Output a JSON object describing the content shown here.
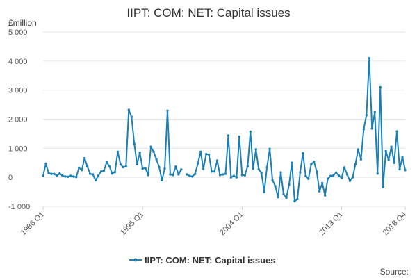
{
  "chart_data": {
    "type": "line",
    "title": "IIPT: COM: NET: Capital issues",
    "unit_label": "£million",
    "source_label": "Source:",
    "ylim": [
      -1000,
      5000
    ],
    "yticks": [
      -1000,
      0,
      1000,
      2000,
      3000,
      4000,
      5000
    ],
    "ytick_labels": [
      "-1 000",
      "0",
      "1 000",
      "2 000",
      "3 000",
      "4 000",
      "5 000"
    ],
    "x_start_label": "1986 Q1",
    "x_end_label": "2018 Q4",
    "xtick_labels": [
      "1986 Q1",
      "1995 Q1",
      "2004 Q1",
      "2013 Q1",
      "2018 Q4"
    ],
    "xtick_indices": [
      0,
      36,
      72,
      108,
      131
    ],
    "grid": true,
    "legend_position": "bottom",
    "color": "#1a7fb5",
    "series": [
      {
        "name": "IIPT: COM: NET: Capital issues",
        "values": [
          50,
          470,
          150,
          120,
          120,
          60,
          130,
          60,
          30,
          20,
          50,
          30,
          10,
          330,
          250,
          660,
          380,
          120,
          100,
          -100,
          60,
          200,
          230,
          520,
          380,
          130,
          180,
          880,
          450,
          350,
          380,
          2320,
          2080,
          1150,
          450,
          850,
          300,
          320,
          80,
          1050,
          880,
          620,
          350,
          -100,
          300,
          2290,
          100,
          80,
          370,
          100,
          270,
          null,
          100,
          50,
          30,
          120,
          480,
          880,
          290,
          800,
          780,
          200,
          200,
          580,
          80,
          100,
          120,
          1440,
          0,
          50,
          0,
          1400,
          80,
          70,
          380,
          1570,
          300,
          960,
          280,
          150,
          -500,
          350,
          980,
          -100,
          -300,
          -680,
          170,
          -580,
          -700,
          -250,
          500,
          -820,
          -750,
          170,
          830,
          50,
          -50,
          450,
          540,
          200,
          -480,
          -200,
          -620,
          -50,
          50,
          60,
          160,
          60,
          -20,
          340,
          100,
          -120,
          0,
          450,
          960,
          620,
          1660,
          2140,
          4100,
          1680,
          2240,
          130,
          3100,
          -330,
          900,
          600,
          1050,
          500,
          1580,
          280,
          700,
          250
        ]
      }
    ]
  }
}
